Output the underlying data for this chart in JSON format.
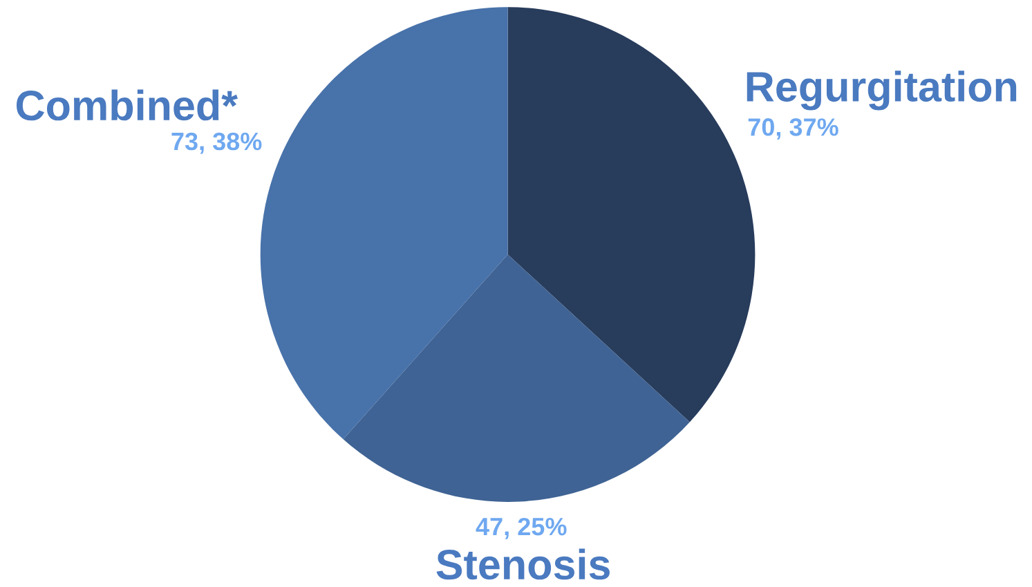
{
  "chart_data": {
    "type": "pie",
    "categories": [
      "Regurgitation",
      "Stenosis",
      "Combined*"
    ],
    "values": [
      70,
      47,
      73
    ],
    "value_labels": [
      "70, 37%",
      "47, 25%",
      "73, 38%"
    ],
    "colors": [
      "#283c5c",
      "#3f6394",
      "#4872aa"
    ]
  }
}
